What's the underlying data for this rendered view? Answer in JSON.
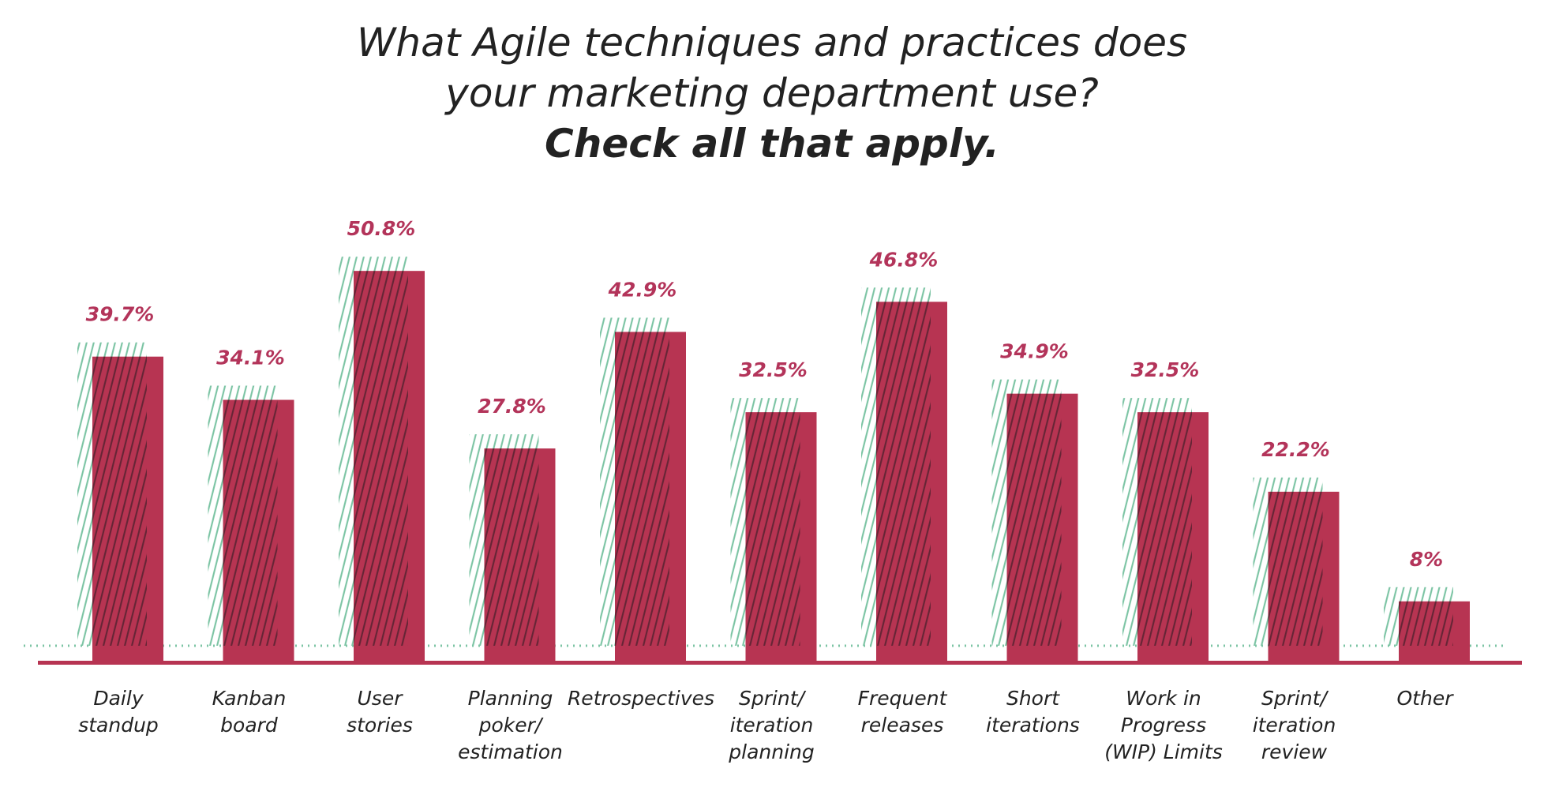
{
  "chart_data": {
    "type": "bar",
    "title_lines": [
      "What Agile techniques and practices does",
      "your marketing department use?"
    ],
    "subtitle": "Check all that apply.",
    "categories": [
      [
        "Daily",
        "standup"
      ],
      [
        "Kanban",
        "board"
      ],
      [
        "User",
        "stories"
      ],
      [
        "Planning",
        "poker/",
        "estimation"
      ],
      [
        "Retrospectives"
      ],
      [
        "Sprint/",
        "iteration",
        "planning"
      ],
      [
        "Frequent",
        "releases"
      ],
      [
        "Short",
        "iterations"
      ],
      [
        "Work in",
        "Progress",
        "(WIP) Limits"
      ],
      [
        "Sprint/",
        "iteration",
        "review"
      ],
      [
        "Other"
      ]
    ],
    "values": [
      39.7,
      34.1,
      50.8,
      27.8,
      42.9,
      32.5,
      46.8,
      34.9,
      32.5,
      22.2,
      8
    ],
    "labels": [
      "39.7%",
      "34.1%",
      "50.8%",
      "27.8%",
      "42.9%",
      "32.5%",
      "46.8%",
      "34.9%",
      "32.5%",
      "22.2%",
      "8%"
    ],
    "ylim": [
      0,
      55
    ],
    "xlabel": "",
    "ylabel": "",
    "grid": false,
    "colors": {
      "bar": "#b73452",
      "hatch": "#7cc4a4",
      "label": "#b3345a",
      "axis": "#b73452"
    }
  }
}
